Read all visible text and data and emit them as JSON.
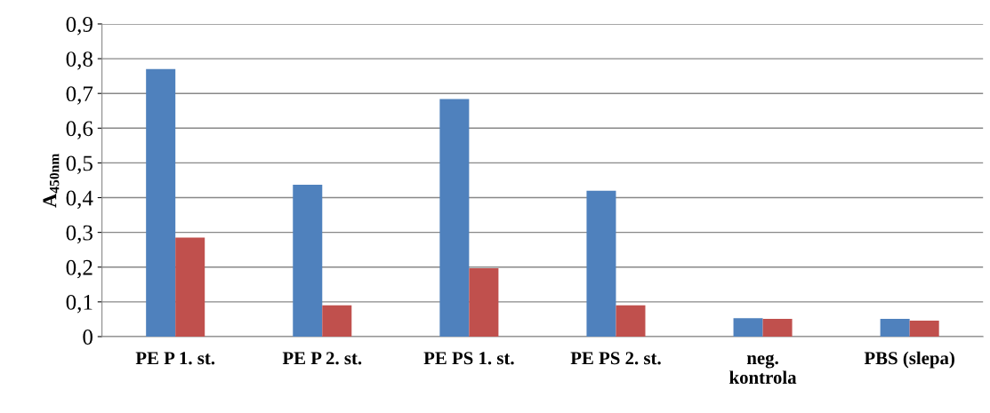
{
  "chart_data": {
    "type": "bar",
    "ylabel": "A$_{450nm}$",
    "categories": [
      "PE P 1. st.",
      "PE P 2. st.",
      "PE PS 1. st.",
      "PE PS 2. st.",
      "neg.\nkontrola",
      "PBS (slepa)"
    ],
    "series": [
      {
        "color": "#4f81bd",
        "values": [
          0.77,
          0.437,
          0.684,
          0.42,
          0.053,
          0.051
        ]
      },
      {
        "color": "#c0504d",
        "values": [
          0.285,
          0.09,
          0.197,
          0.09,
          0.051,
          0.046
        ]
      }
    ],
    "ylim": [
      0,
      0.9
    ],
    "yticks": [
      0,
      {
        "value": 0.1,
        "label": "0,1"
      },
      {
        "value": 0.2,
        "label": "0,2"
      },
      {
        "value": 0.3,
        "label": "0,3"
      },
      {
        "value": 0.4,
        "label": "0,4"
      },
      {
        "value": 0.5,
        "label": "0,5"
      },
      {
        "value": 0.6,
        "label": "0,6"
      },
      {
        "value": 0.7,
        "label": "0,7"
      },
      {
        "value": 0.8,
        "label": "0,8"
      },
      {
        "value": 0.9,
        "label": "0,9"
      }
    ],
    "grid": "y"
  }
}
